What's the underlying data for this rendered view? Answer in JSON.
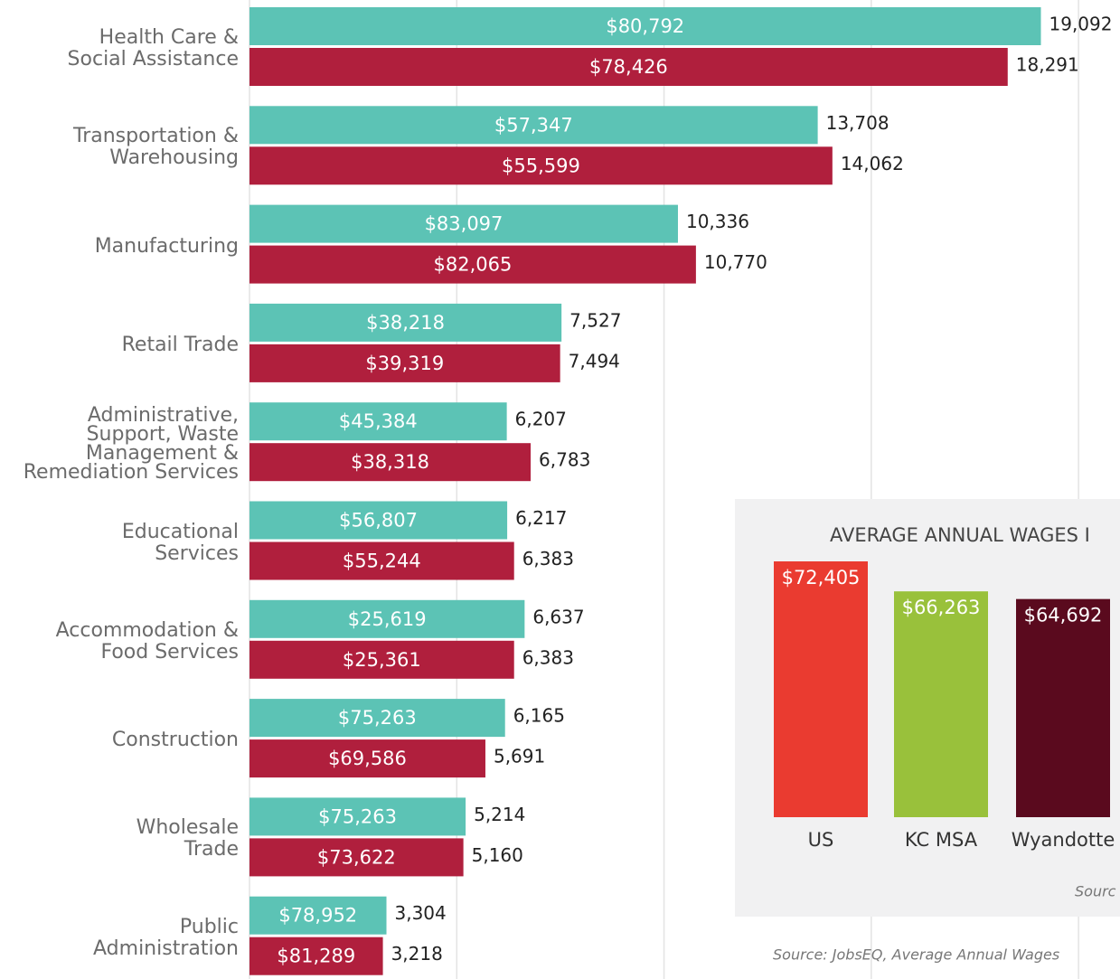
{
  "chart_data": [
    {
      "type": "bar",
      "orientation": "horizontal",
      "categories": [
        "Health Care &\nSocial Assistance",
        "Transportation &\nWarehousing",
        "Manufacturing",
        "Retail Trade",
        "Administrative,\nSupport, Waste\nManagement &\nRemediation Services",
        "Educational\nServices",
        "Accommodation &\nFood Services",
        "Construction",
        "Wholesale\nTrade",
        "Public\nAdministration"
      ],
      "series": [
        {
          "color": "#5cc3b5",
          "values": [
            19092,
            13708,
            10336,
            7527,
            6207,
            6217,
            6637,
            6165,
            5214,
            3304
          ],
          "value_labels": [
            "19,092",
            "13,708",
            "10,336",
            "7,527",
            "6,207",
            "6,217",
            "6,637",
            "6,165",
            "5,214",
            "3,304"
          ],
          "wage_labels": [
            "$80,792",
            "$57,347",
            "$83,097",
            "$38,218",
            "$45,384",
            "$56,807",
            "$25,619",
            "$75,263",
            "$75,263",
            "$78,952"
          ]
        },
        {
          "color": "#b01f3d",
          "values": [
            18291,
            14062,
            10770,
            7494,
            6783,
            6383,
            6383,
            5691,
            5160,
            3218
          ],
          "value_labels": [
            "18,291",
            "14,062",
            "10,770",
            "7,494",
            "6,783",
            "6,383",
            "6,383",
            "5,691",
            "5,160",
            "3,218"
          ],
          "wage_labels": [
            "$78,426",
            "$55,599",
            "$82,065",
            "$39,319",
            "$38,318",
            "$55,244",
            "$25,361",
            "$69,586",
            "$73,622",
            "$81,289"
          ]
        }
      ],
      "xlim": [
        0,
        21000
      ],
      "xticks": [
        0,
        5000,
        10000,
        15000,
        20000
      ],
      "grid": true,
      "source": "Source: JobsEQ, Average Annual Wages"
    },
    {
      "type": "bar",
      "orientation": "vertical",
      "title": "AVERAGE ANNUAL WAGES I",
      "categories": [
        "US",
        "KC MSA",
        "Wyandotte"
      ],
      "values": [
        72405,
        66263,
        64692
      ],
      "value_labels": [
        "$72,405",
        "$66,263",
        "$64,692"
      ],
      "colors": [
        "#ea3b30",
        "#99c13b",
        "#5a0a1e"
      ],
      "ylim": [
        20000,
        75000
      ],
      "source": "Sourc"
    }
  ]
}
